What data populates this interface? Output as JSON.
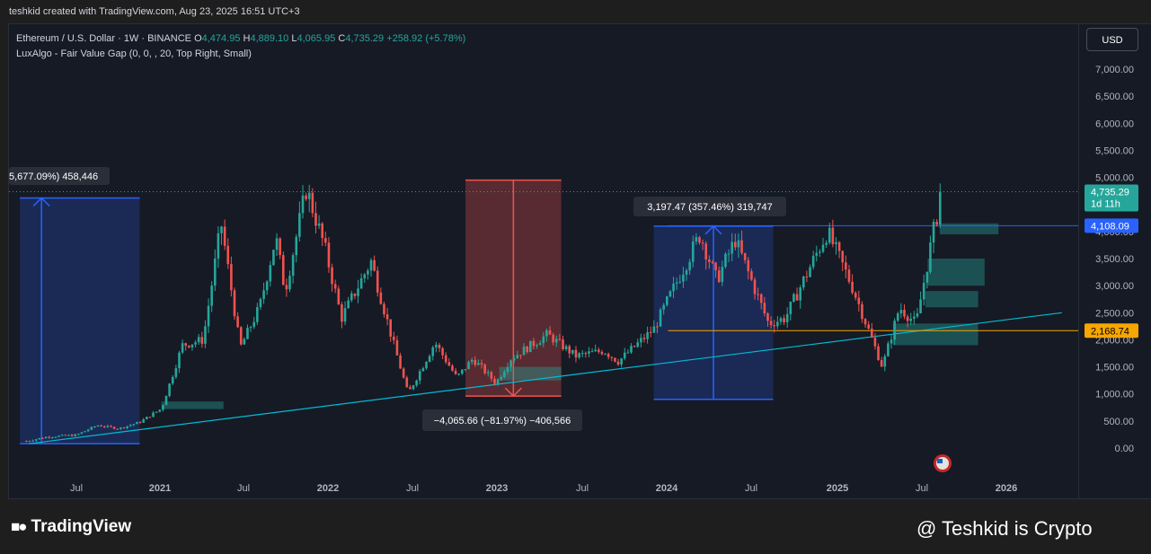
{
  "header": {
    "caption": "teshkid created with TradingView.com, Aug 23, 2025 16:51 UTC+3"
  },
  "legend": {
    "symbol": "Ethereum / U.S. Dollar · 1W · BINANCE",
    "o_label": "O",
    "o_value": "4,474.95",
    "h_label": "H",
    "h_value": "4,889.10",
    "l_label": "L",
    "l_value": "4,065.95",
    "c_label": "C",
    "c_value": "4,735.29",
    "change": "+258.92 (+5.78%)",
    "indicator": "LuxAlgo - Fair Value Gap (0, 0, , 20, Top Right, Small)"
  },
  "currency_button": "USD",
  "price_axis": {
    "ticks": [
      "7,000.00",
      "6,500.00",
      "6,000.00",
      "5,500.00",
      "5,000.00",
      "4,500.00",
      "4,000.00",
      "3,500.00",
      "3,000.00",
      "2,500.00",
      "2,000.00",
      "1,500.00",
      "1,000.00",
      "500.00",
      "0.00"
    ],
    "tick_values": [
      7000,
      6500,
      6000,
      5500,
      5000,
      4500,
      4000,
      3500,
      3000,
      2500,
      2000,
      1500,
      1000,
      500,
      0
    ],
    "current_price": "4,735.29",
    "countdown": "1d 11h",
    "level_blue": "4,108.09",
    "level_orange": "2,168.74"
  },
  "time_axis": {
    "labels": [
      "Jul",
      "2021",
      "Jul",
      "2022",
      "Jul",
      "2023",
      "Jul",
      "2024",
      "Jul",
      "2025",
      "Jul",
      "2026"
    ],
    "bold": [
      false,
      true,
      false,
      true,
      false,
      true,
      false,
      true,
      false,
      true,
      false,
      true
    ]
  },
  "annotations": {
    "left_measure": "5,677.09%) 458,446",
    "drop_measure": "−4,065.66 (−81.97%) −406,566",
    "rise_measure": "3,197.47 (357.46%) 319,747"
  },
  "colors": {
    "up": "#26a69a",
    "down": "#ef5350",
    "blue": "#2962ff",
    "orange": "#f7a600",
    "trend": "#00bcd4"
  },
  "chart_data": {
    "type": "candlestick",
    "title": "Ethereum / U.S. Dollar · 1W · BINANCE",
    "x_range": [
      "2020-03",
      "2026-05"
    ],
    "ylim": [
      -200,
      7400
    ],
    "points": [
      [
        "2020-03-15",
        130
      ],
      [
        "2020-05-01",
        210
      ],
      [
        "2020-07-01",
        240
      ],
      [
        "2020-08-15",
        420
      ],
      [
        "2020-10-01",
        360
      ],
      [
        "2020-11-15",
        480
      ],
      [
        "2021-01-01",
        730
      ],
      [
        "2021-02-15",
        1900
      ],
      [
        "2021-04-01",
        2000
      ],
      [
        "2021-05-10",
        4150
      ],
      [
        "2021-06-20",
        1850
      ],
      [
        "2021-08-01",
        2600
      ],
      [
        "2021-09-05",
        3900
      ],
      [
        "2021-09-25",
        2900
      ],
      [
        "2021-11-10",
        4800
      ],
      [
        "2021-12-20",
        3700
      ],
      [
        "2022-01-25",
        2400
      ],
      [
        "2022-03-30",
        3450
      ],
      [
        "2022-05-15",
        2000
      ],
      [
        "2022-06-18",
        1000
      ],
      [
        "2022-08-15",
        1950
      ],
      [
        "2022-10-01",
        1300
      ],
      [
        "2022-11-05",
        1650
      ],
      [
        "2022-12-25",
        1200
      ],
      [
        "2023-01-25",
        1650
      ],
      [
        "2023-04-15",
        2100
      ],
      [
        "2023-06-15",
        1700
      ],
      [
        "2023-08-15",
        1800
      ],
      [
        "2023-09-15",
        1600
      ],
      [
        "2023-12-01",
        2200
      ],
      [
        "2024-03-10",
        3950
      ],
      [
        "2024-04-15",
        3100
      ],
      [
        "2024-05-25",
        3850
      ],
      [
        "2024-08-05",
        2300
      ],
      [
        "2024-09-10",
        2400
      ],
      [
        "2024-12-10",
        4000
      ],
      [
        "2025-02-01",
        3000
      ],
      [
        "2025-04-08",
        1500
      ],
      [
        "2025-05-15",
        2600
      ],
      [
        "2025-06-20",
        2300
      ],
      [
        "2025-07-25",
        3900
      ],
      [
        "2025-08-15",
        4735
      ]
    ],
    "last": {
      "open": 4474.95,
      "high": 4889.1,
      "low": 4065.95,
      "close": 4735.29,
      "change": 258.92,
      "change_pct": 5.78
    },
    "levels": [
      {
        "name": "4,108.09",
        "value": 4108.09
      },
      {
        "name": "2,168.74",
        "value": 2168.74
      }
    ],
    "trendline": [
      [
        "2020-03-20",
        80
      ],
      [
        "2026-05-01",
        2500
      ]
    ],
    "fvg_zones": [
      {
        "x0": "2021-01-01",
        "x1": "2021-05-15",
        "y0": 720,
        "y1": 860
      },
      {
        "x0": "2023-01-01",
        "x1": "2023-05-15",
        "y0": 1250,
        "y1": 1500
      },
      {
        "x0": "2025-05-01",
        "x1": "2025-11-01",
        "y0": 1900,
        "y1": 2300
      },
      {
        "x0": "2025-07-10",
        "x1": "2025-11-01",
        "y0": 2600,
        "y1": 2900
      },
      {
        "x0": "2025-07-15",
        "x1": "2025-11-15",
        "y0": 3000,
        "y1": 3500
      },
      {
        "x0": "2025-08-10",
        "x1": "2025-12-15",
        "y0": 3950,
        "y1": 4150
      }
    ],
    "measures": [
      {
        "label": "5,677.09%) 458,446",
        "x0": "2020-03-01",
        "x1": "2020-11-15",
        "y0": 80,
        "y1": 4620,
        "color": "blue"
      },
      {
        "label": "−4,065.66 (−81.97%) −406,566",
        "x0": "2022-10-20",
        "x1": "2023-05-15",
        "y0": 960,
        "y1": 4950,
        "color": "red"
      },
      {
        "label": "3,197.47 (357.46%) 319,747",
        "x0": "2023-12-01",
        "x1": "2024-08-15",
        "y0": 900,
        "y1": 4100,
        "color": "blue"
      }
    ]
  },
  "brand": {
    "logo_text": "TradingView",
    "watermark": "@ Teshkid is Crypto"
  }
}
